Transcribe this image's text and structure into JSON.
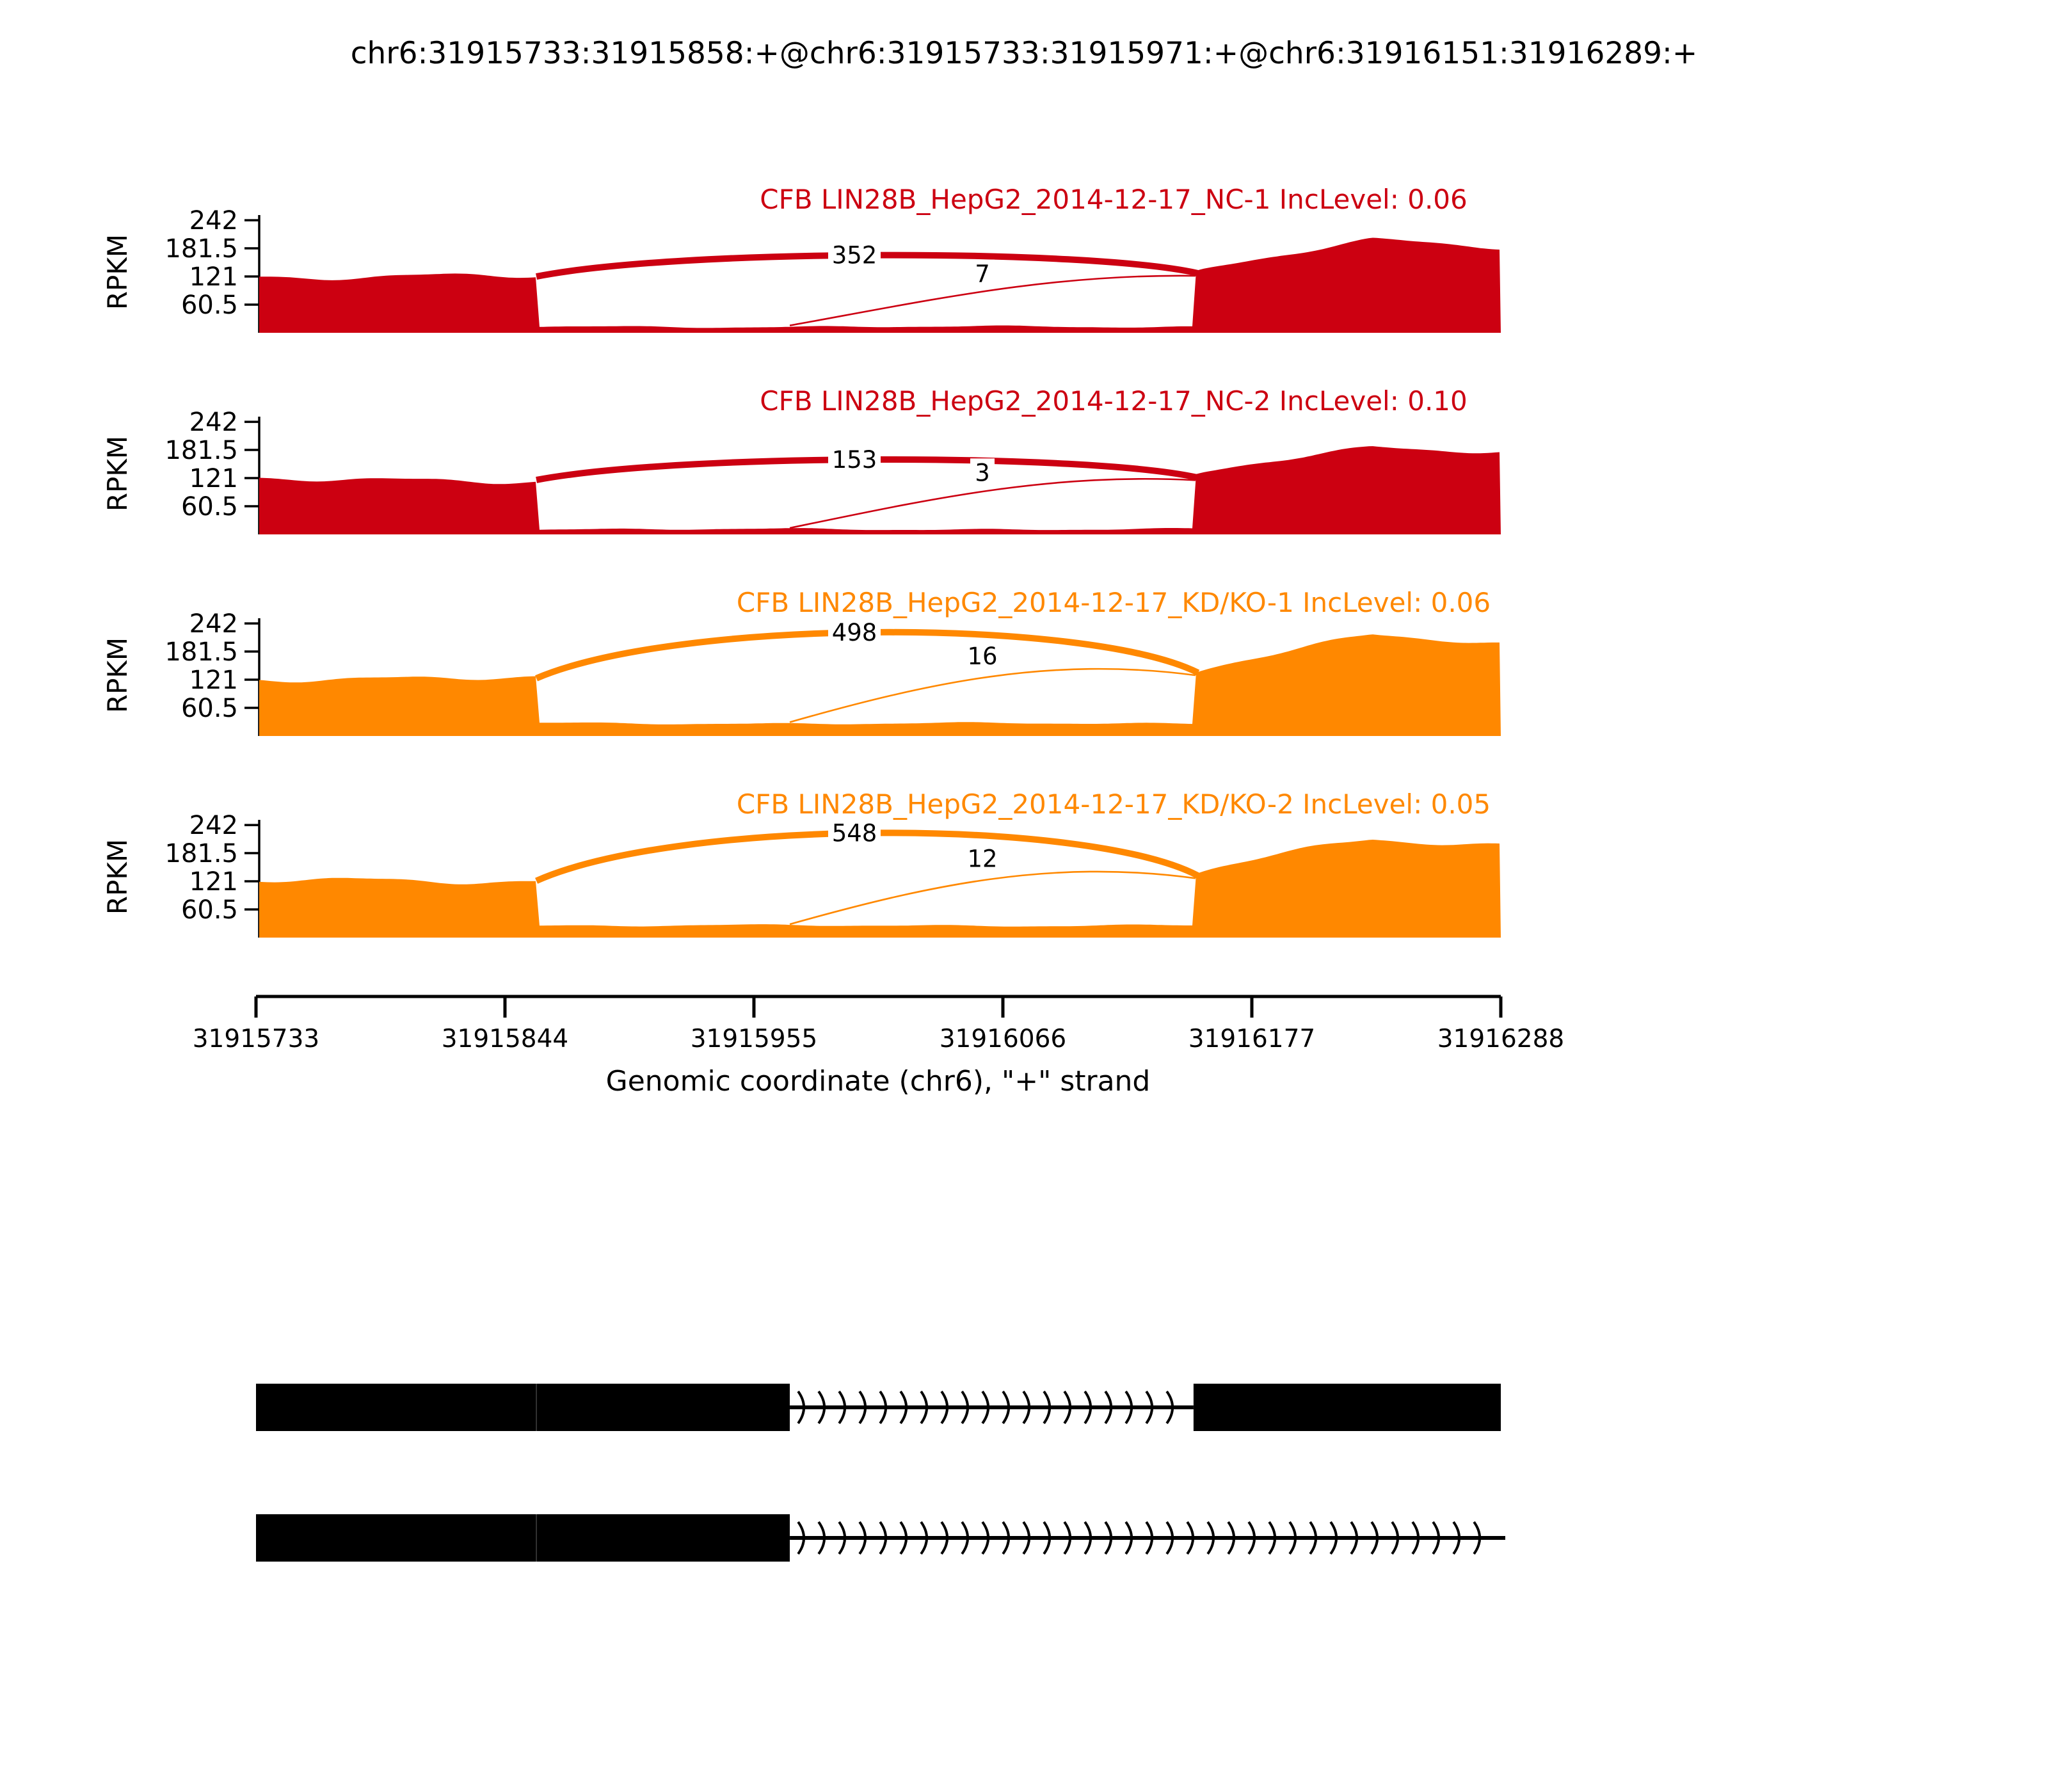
{
  "figure": {
    "title": "chr6:31915733:31915858:+@chr6:31915733:31915971:+@chr6:31916151:31916289:+",
    "background": "#ffffff"
  },
  "chart_data": {
    "type": "area",
    "variant": "rmats-sashimi-plot",
    "x_axis": {
      "label": "Genomic coordinate (chr6), \"+\" strand",
      "ticks": [
        "31915733",
        "31915844",
        "31915955",
        "31916066",
        "31916177",
        "31916288"
      ],
      "range": [
        31915733,
        31916288
      ]
    },
    "y_axis": {
      "label": "RPKM",
      "ticks": [
        "242",
        "181.5",
        "121",
        "60.5"
      ],
      "tick_values": [
        242,
        181.5,
        121,
        60.5
      ],
      "range": [
        0,
        253
      ]
    },
    "event_exons": {
      "exon1": [
        31915733,
        31915858
      ],
      "exon2": [
        31915733,
        31915971
      ],
      "exon3": [
        31916151,
        31916289
      ]
    },
    "tracks": [
      {
        "label": "CFB LIN28B_HepG2_2014-12-17_NC-1 IncLevel: 0.06",
        "inc_level": "0.06",
        "color": "#CC0011",
        "coverage": {
          "exon1_rpkm": 121,
          "intron_rpkm": 13,
          "exon3_start_rpkm": 128,
          "exon3_peak_rpkm": 198,
          "exon3_end_rpkm": 182
        },
        "junctions": [
          {
            "count": "352",
            "from": 31915858,
            "to": 31916151,
            "style": "thick",
            "apex_rpkm": 167
          },
          {
            "count": "7",
            "from": 31915971,
            "to": 31916151,
            "style": "thin",
            "apex_rpkm": 127
          }
        ]
      },
      {
        "label": "CFB LIN28B_HepG2_2014-12-17_NC-2 IncLevel: 0.10",
        "inc_level": "0.10",
        "color": "#CC0011",
        "coverage": {
          "exon1_rpkm": 117,
          "intron_rpkm": 11,
          "exon3_start_rpkm": 122,
          "exon3_peak_rpkm": 188,
          "exon3_end_rpkm": 180
        },
        "junctions": [
          {
            "count": "153",
            "from": 31915858,
            "to": 31916151,
            "style": "thick",
            "apex_rpkm": 161
          },
          {
            "count": "3",
            "from": 31915971,
            "to": 31916151,
            "style": "thin",
            "apex_rpkm": 133
          }
        ]
      },
      {
        "label": "CFB LIN28B_HepG2_2014-12-17_KD/KO-1 IncLevel: 0.06",
        "inc_level": "0.06",
        "color": "#FF8800",
        "coverage": {
          "exon1_rpkm": 124,
          "intron_rpkm": 27,
          "exon3_start_rpkm": 136,
          "exon3_peak_rpkm": 216,
          "exon3_end_rpkm": 196
        },
        "junctions": [
          {
            "count": "498",
            "from": 31915858,
            "to": 31916151,
            "style": "thick",
            "apex_rpkm": 223
          },
          {
            "count": "16",
            "from": 31915971,
            "to": 31916151,
            "style": "thin",
            "apex_rpkm": 172
          }
        ]
      },
      {
        "label": "CFB LIN28B_HepG2_2014-12-17_KD/KO-2 IncLevel: 0.05",
        "inc_level": "0.05",
        "color": "#FF8800",
        "coverage": {
          "exon1_rpkm": 122,
          "intron_rpkm": 26,
          "exon3_start_rpkm": 133,
          "exon3_peak_rpkm": 212,
          "exon3_end_rpkm": 200
        },
        "junctions": [
          {
            "count": "548",
            "from": 31915858,
            "to": 31916151,
            "style": "thick",
            "apex_rpkm": 225
          },
          {
            "count": "12",
            "from": 31915971,
            "to": 31916151,
            "style": "thin",
            "apex_rpkm": 170
          }
        ]
      }
    ],
    "gene_models": [
      {
        "exons": [
          [
            31915733,
            31915858
          ],
          [
            31915858,
            31915971
          ],
          [
            31916151,
            31916289
          ]
        ],
        "intron_arrows": [
          31915971,
          31916151
        ]
      },
      {
        "exons": [
          [
            31915733,
            31915858
          ],
          [
            31915858,
            31915971
          ]
        ],
        "intron_arrows": [
          31915971,
          31916290
        ]
      }
    ],
    "gene_model_color": "#000000"
  }
}
